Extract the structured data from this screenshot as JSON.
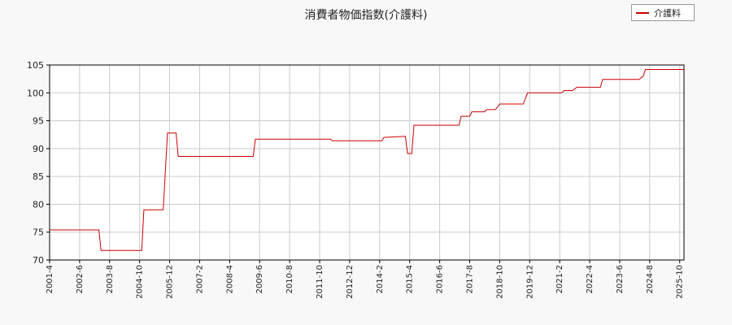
{
  "chart_data": {
    "type": "line",
    "title": "消費者物価指数(介護料)",
    "xlabel": "",
    "ylabel": "",
    "ylim": [
      70,
      105
    ],
    "yticks": [
      70,
      75,
      80,
      85,
      90,
      95,
      100,
      105
    ],
    "xticks": [
      "2001-4",
      "2002-6",
      "2003-8",
      "2004-10",
      "2005-12",
      "2007-2",
      "2008-4",
      "2009-6",
      "2010-8",
      "2011-10",
      "2012-12",
      "2014-2",
      "2015-4",
      "2016-6",
      "2017-8",
      "2018-10",
      "2019-12",
      "2021-2",
      "2022-4",
      "2023-6",
      "2024-8",
      "2025-10"
    ],
    "xlim": [
      "2001-4",
      "2025-12"
    ],
    "grid": true,
    "legend_position": "top-right",
    "series": [
      {
        "name": "介護料",
        "color": "#cc0000",
        "points": [
          [
            "2001-4",
            75.4
          ],
          [
            "2003-3",
            75.4
          ],
          [
            "2003-4",
            71.7
          ],
          [
            "2004-11",
            71.7
          ],
          [
            "2004-12",
            79.0
          ],
          [
            "2005-9",
            79.0
          ],
          [
            "2005-11",
            92.8
          ],
          [
            "2006-3",
            92.8
          ],
          [
            "2006-4",
            88.6
          ],
          [
            "2009-3",
            88.6
          ],
          [
            "2009-4",
            91.7
          ],
          [
            "2012-3",
            91.7
          ],
          [
            "2012-4",
            91.4
          ],
          [
            "2014-3",
            91.4
          ],
          [
            "2014-4",
            92.0
          ],
          [
            "2015-2",
            92.2
          ],
          [
            "2015-3",
            89.1
          ],
          [
            "2015-5",
            89.1
          ],
          [
            "2015-6",
            94.2
          ],
          [
            "2017-3",
            94.2
          ],
          [
            "2017-4",
            95.8
          ],
          [
            "2017-8",
            95.8
          ],
          [
            "2017-9",
            96.6
          ],
          [
            "2018-3",
            96.6
          ],
          [
            "2018-4",
            97.0
          ],
          [
            "2018-8",
            97.0
          ],
          [
            "2018-10",
            98.0
          ],
          [
            "2019-9",
            98.0
          ],
          [
            "2019-11",
            100.0
          ],
          [
            "2021-3",
            100.0
          ],
          [
            "2021-4",
            100.4
          ],
          [
            "2021-8",
            100.4
          ],
          [
            "2021-10",
            101.0
          ],
          [
            "2022-9",
            101.0
          ],
          [
            "2022-10",
            102.4
          ],
          [
            "2024-3",
            102.4
          ],
          [
            "2024-5",
            103.0
          ],
          [
            "2024-6",
            104.2
          ],
          [
            "2025-12",
            104.2
          ]
        ]
      }
    ]
  }
}
